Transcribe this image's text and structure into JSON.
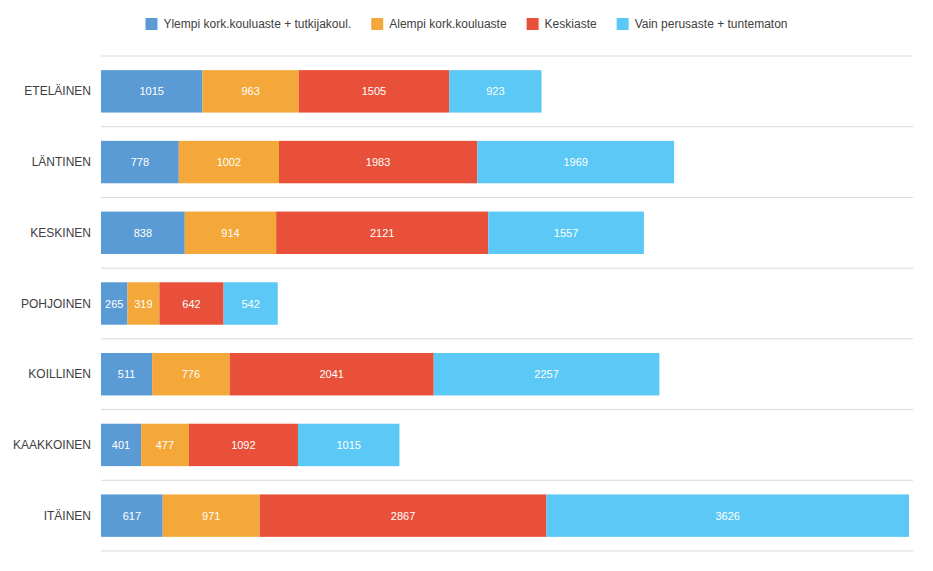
{
  "chart_data": {
    "type": "bar",
    "orientation": "horizontal",
    "stacked": true,
    "categories": [
      "ETELÄINEN",
      "LÄNTINEN",
      "KESKINEN",
      "POHJOINEN",
      "KOILLINEN",
      "KAAKKOINEN",
      "ITÄINEN"
    ],
    "series": [
      {
        "name": "Ylempi kork.kouluaste + tutkijakoul.",
        "color": "#5b9bd5",
        "values": [
          1015,
          778,
          838,
          265,
          511,
          401,
          617
        ]
      },
      {
        "name": "Alempi kork.kouluaste",
        "color": "#f4a83a",
        "values": [
          963,
          1002,
          914,
          319,
          776,
          477,
          971
        ]
      },
      {
        "name": "Keskiaste",
        "color": "#e8503a",
        "values": [
          1505,
          1983,
          2121,
          642,
          2041,
          1092,
          2867
        ]
      },
      {
        "name": "Vain perusaste + tuntematon",
        "color": "#5bc8f5",
        "values": [
          923,
          1969,
          1557,
          542,
          2257,
          1015,
          3626
        ]
      }
    ],
    "xlim": [
      0,
      8121.405
    ],
    "data_labels": true,
    "tick_labels": "y",
    "legend": "top"
  }
}
